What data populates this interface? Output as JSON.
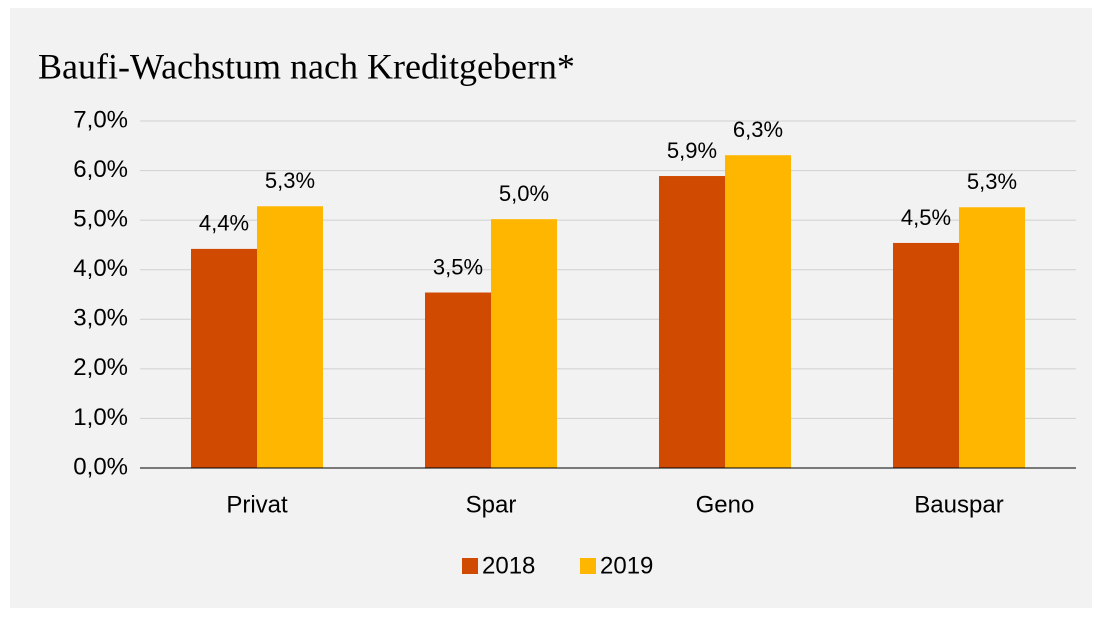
{
  "chart_data": {
    "type": "bar",
    "title": "Baufi-Wachstum nach Kreditgebern*",
    "categories": [
      "Privat",
      "Spar",
      "Geno",
      "Bauspar"
    ],
    "series": [
      {
        "name": "2018",
        "color": "#d04a02",
        "values": [
          4.42,
          3.54,
          5.89,
          4.54
        ],
        "value_labels": [
          "4,4%",
          "3,5%",
          "5,9%",
          "4,5%"
        ]
      },
      {
        "name": "2019",
        "color": "#ffb600",
        "values": [
          5.28,
          5.02,
          6.31,
          5.26
        ],
        "value_labels": [
          "5,3%",
          "5,0%",
          "6,3%",
          "5,3%"
        ]
      }
    ],
    "ylim": [
      0,
      7
    ],
    "yticks": [
      {
        "value": 0,
        "label": "0,0%"
      },
      {
        "value": 1,
        "label": "1,0%"
      },
      {
        "value": 2,
        "label": "2,0%"
      },
      {
        "value": 3,
        "label": "3,0%"
      },
      {
        "value": 4,
        "label": "4,0%"
      },
      {
        "value": 5,
        "label": "5,0%"
      },
      {
        "value": 6,
        "label": "6,0%"
      },
      {
        "value": 7,
        "label": "7,0%"
      }
    ],
    "grid": true,
    "legend": "bottom"
  }
}
